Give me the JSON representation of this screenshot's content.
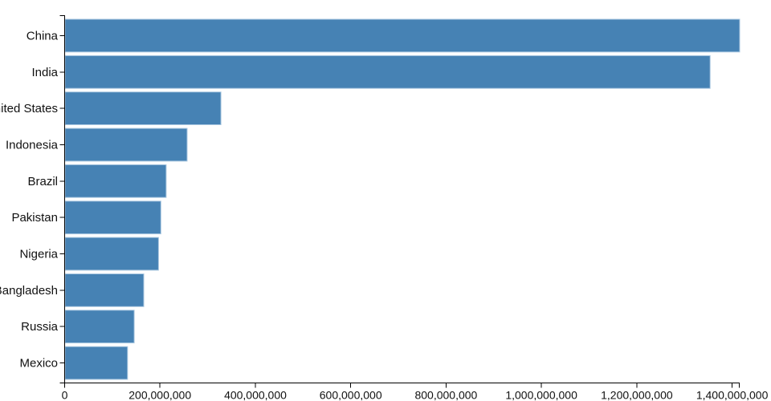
{
  "chart_data": {
    "type": "bar",
    "orientation": "horizontal",
    "title": "",
    "xlabel": "",
    "ylabel": "",
    "categories": [
      "China",
      "India",
      "United States",
      "Indonesia",
      "Brazil",
      "Pakistan",
      "Nigeria",
      "Bangladesh",
      "Russia",
      "Mexico"
    ],
    "values": [
      1415000000,
      1353000000,
      327000000,
      256000000,
      212000000,
      201000000,
      196000000,
      165000000,
      145000000,
      131000000
    ],
    "xlim": [
      0,
      1415000000
    ],
    "x_tick_interval": 200000000,
    "x_ticks": [
      0,
      200000000,
      400000000,
      600000000,
      800000000,
      1000000000,
      1200000000,
      1400000000
    ],
    "x_tick_labels": [
      "0",
      "200,000,000",
      "400,000,000",
      "600,000,000",
      "800,000,000",
      "1,000,000,000",
      "1,200,000,000",
      "1,400,000,000"
    ],
    "grid": false,
    "legend": "none",
    "colors": {
      "bar_fill": "#4682b4",
      "bar_stroke": "#a9c7e0",
      "axis": "#000000",
      "text": "#111111"
    }
  }
}
